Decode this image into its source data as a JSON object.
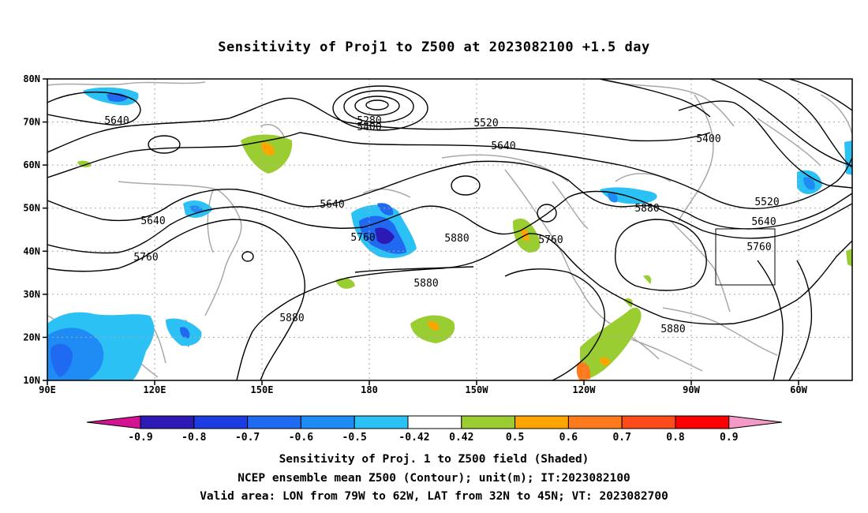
{
  "title": "Sensitivity of Proj1 to Z500 at 2023082100 +1.5 day",
  "lat_labels": [
    "80N",
    "70N",
    "60N",
    "50N",
    "40N",
    "30N",
    "20N",
    "10N"
  ],
  "lon_labels": [
    "90E",
    "120E",
    "150E",
    "180",
    "150W",
    "120W",
    "90W",
    "60W"
  ],
  "contour_labels": [
    "5640",
    "5280",
    "5400",
    "5520",
    "5640",
    "5400",
    "5640",
    "5640",
    "5760",
    "5880",
    "5760",
    "5760",
    "5880",
    "5520",
    "5640",
    "5760",
    "5880",
    "5880",
    "5880"
  ],
  "colorbar": {
    "labels": [
      "-0.9",
      "-0.8",
      "-0.7",
      "-0.6",
      "-0.5",
      "-0.42",
      "0.42",
      "0.5",
      "0.6",
      "0.7",
      "0.8",
      "0.9"
    ],
    "colors": [
      "#2d1ab5",
      "#1b3ce0",
      "#1f6af0",
      "#1f8cf5",
      "#2cc1f5",
      "#ffffff",
      "#9acd32",
      "#ffa500",
      "#ff7a1a",
      "#ff4a1a",
      "#ff0000"
    ],
    "left_arrow_color": "#d21493",
    "right_arrow_color": "#f59ac8"
  },
  "footer": {
    "line1": "Sensitivity of Proj. 1 to Z500 field (Shaded)",
    "line2": "NCEP ensemble mean Z500 (Contour); unit(m); IT:2023082100",
    "line3": "Valid area: LON from 79W to 62W, LAT from 32N to 45N; VT: 2023082700"
  }
}
